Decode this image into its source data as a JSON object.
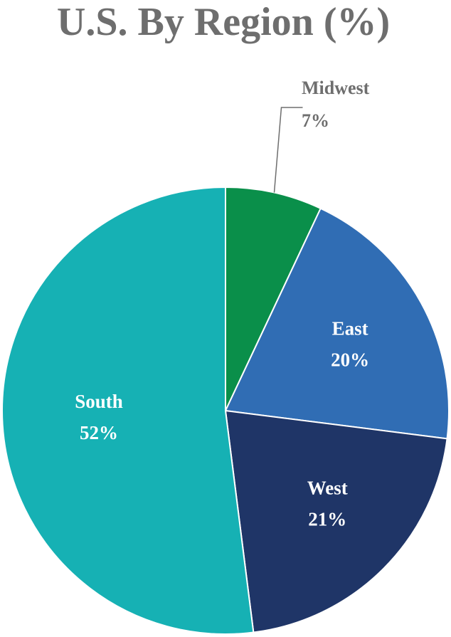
{
  "chart_data": {
    "type": "pie",
    "title": "U.S. By Region (%)",
    "categories": [
      "Midwest",
      "East",
      "West",
      "South"
    ],
    "values": [
      7,
      20,
      21,
      52
    ],
    "value_labels": [
      "7%",
      "20%",
      "21%",
      "52%"
    ],
    "colors": [
      "#0a8f4a",
      "#306db4",
      "#1f3567",
      "#16b1b4"
    ]
  }
}
